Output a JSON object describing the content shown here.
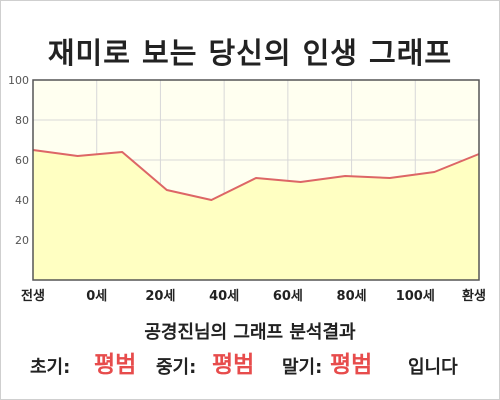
{
  "title": "재미로 보는 당신의 인생 그래프",
  "chart_data": {
    "type": "area",
    "x_tick_labels": [
      "전생",
      "0세",
      "20세",
      "40세",
      "60세",
      "80세",
      "100세",
      "환생"
    ],
    "y_tick_labels": [
      "100",
      "80",
      "60",
      "40",
      "20"
    ],
    "ylim": [
      0,
      100
    ],
    "grid": true,
    "series": [
      {
        "values": [
          65,
          62,
          64,
          45,
          40,
          51,
          49,
          52,
          51,
          54,
          63
        ]
      }
    ],
    "colors": {
      "line": "#dd6666",
      "fill": "#ffffc2",
      "plot_bg": "#fffff0",
      "grid": "#d8d8d8"
    }
  },
  "result": {
    "caption": "공경진님의 그래프 분석결과",
    "early_label": "초기:",
    "early_value": "평범",
    "mid_label": "중기:",
    "mid_value": "평범",
    "late_label": "말기:",
    "late_value": "평범",
    "suffix": "입니다"
  }
}
